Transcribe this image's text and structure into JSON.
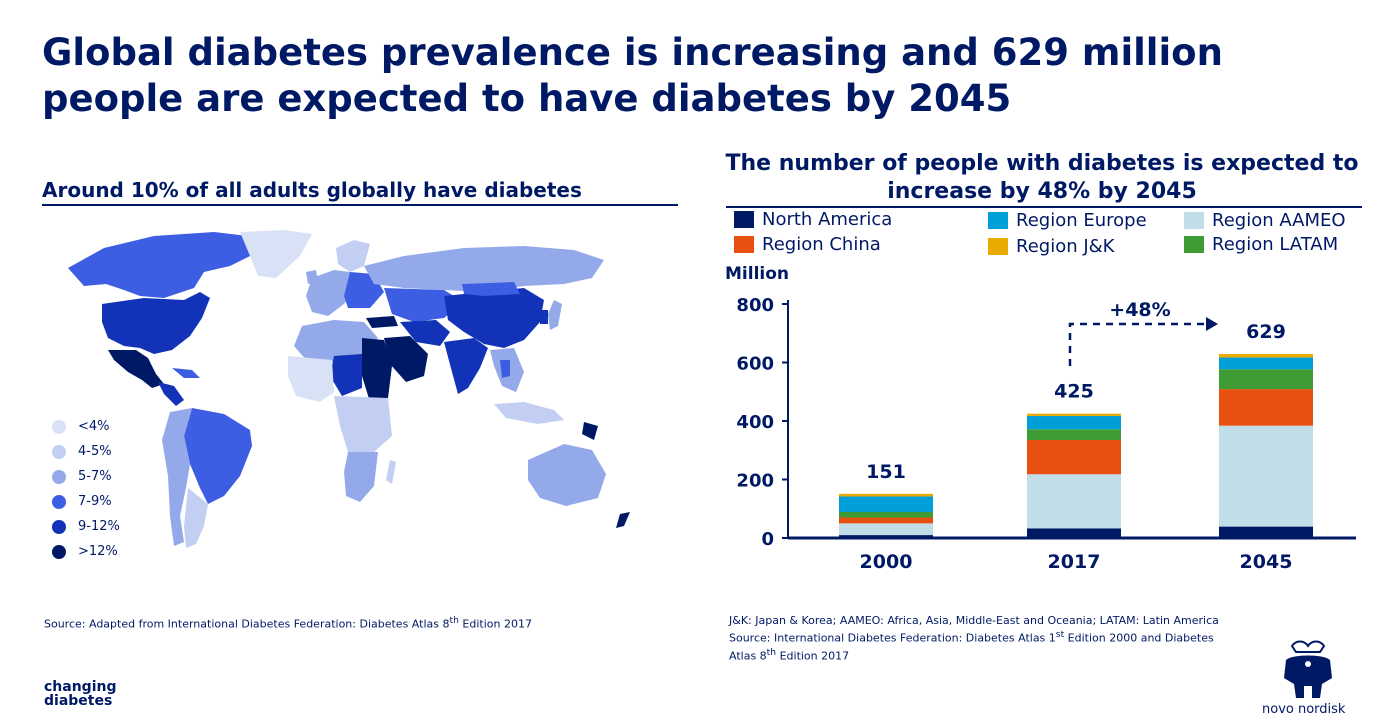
{
  "slide": {
    "title": "Global diabetes prevalence is increasing and 629 million people are expected to have diabetes by 2045",
    "left_subtitle": "Around 10% of all adults globally have diabetes",
    "right_subtitle": "The number of people with diabetes is expected to increase by 48% by 2045"
  },
  "map_legend": [
    {
      "label": "<4%",
      "color": "#d9e1f7"
    },
    {
      "label": "4-5%",
      "color": "#c2cff2"
    },
    {
      "label": "5-7%",
      "color": "#94a9ea"
    },
    {
      "label": "7-9%",
      "color": "#3d5ee3"
    },
    {
      "label": "9-12%",
      "color": "#1233b8"
    },
    {
      "label": ">12%",
      "color": "#001965"
    }
  ],
  "chart_data": {
    "type": "bar",
    "stacked": true,
    "categories": [
      "2000",
      "2017",
      "2045"
    ],
    "ylabel": "Million",
    "ylim": [
      0,
      800
    ],
    "yticks": [
      "0",
      "200",
      "400",
      "600",
      "800"
    ],
    "totals": [
      "151",
      "425",
      "629"
    ],
    "annotation": "+48%",
    "series": [
      {
        "name": "North America",
        "color": "#001965",
        "values": [
          10,
          33,
          39
        ]
      },
      {
        "name": "Region AAMEO",
        "color": "#c1dde8",
        "values": [
          40,
          185,
          345
        ]
      },
      {
        "name": "Region China",
        "color": "#e8500f",
        "values": [
          20,
          117,
          125
        ]
      },
      {
        "name": "Region LATAM",
        "color": "#3f9c35",
        "values": [
          19,
          37,
          68
        ]
      },
      {
        "name": "Region Europe",
        "color": "#009fda",
        "values": [
          53,
          45,
          40
        ]
      },
      {
        "name": "Region J&K",
        "color": "#eaab00",
        "values": [
          9,
          8,
          12
        ]
      }
    ]
  },
  "chart_legend_order": [
    "North America",
    "Region Europe",
    "Region AAMEO",
    "Region China",
    "Region J&K",
    "Region LATAM"
  ],
  "footnotes": {
    "left_prefix": "Source: Adapted from International Diabetes Federation: Diabetes Atlas 8",
    "left_sup": "th",
    "left_suffix": " Edition 2017",
    "right_line1": "J&K: Japan & Korea; AAMEO: Africa, Asia, Middle-East and Oceania; LATAM: Latin America",
    "right_line2_prefix": "Source: International Diabetes Federation: Diabetes Atlas 1",
    "right_line2_sup": "st",
    "right_line2_suffix": " Edition 2000 and Diabetes",
    "right_line3_prefix": "Atlas 8",
    "right_line3_sup": "th",
    "right_line3_suffix": " Edition 2017"
  },
  "logos": {
    "left_line1": "changing",
    "left_line2": "diabetes",
    "right": "novo nordisk"
  }
}
